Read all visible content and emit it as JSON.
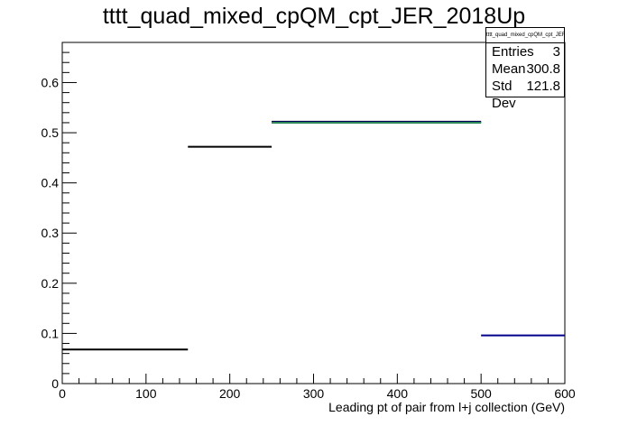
{
  "chart_data": {
    "type": "histogram",
    "title": "tttt_quad_mixed_cpQM_cpt_JER_2018Up",
    "xlabel": "Leading pt of pair from l+j collection (GeV)",
    "ylabel": "",
    "xlim": [
      0,
      600
    ],
    "ylim": [
      0,
      0.68
    ],
    "xticks": [
      0,
      100,
      200,
      300,
      400,
      500,
      600
    ],
    "yticks": [
      0,
      0.1,
      0.2,
      0.3,
      0.4,
      0.5,
      0.6
    ],
    "grid": false,
    "series": [
      {
        "color": "#000000",
        "bins": [
          {
            "x0": 0,
            "x1": 150,
            "y": 0.068
          },
          {
            "x0": 150,
            "x1": 250,
            "y": 0.472
          },
          {
            "x0": 250,
            "x1": 500,
            "y": 0.522
          }
        ]
      },
      {
        "color": "#00008b",
        "bins": [
          {
            "x0": 250,
            "x1": 500,
            "y": 0.521
          },
          {
            "x0": 500,
            "x1": 600,
            "y": 0.096
          }
        ]
      },
      {
        "color": "#2e8b57",
        "bins": [
          {
            "x0": 250,
            "x1": 500,
            "y": 0.52
          }
        ]
      }
    ],
    "stats_box": {
      "title": "tttt_quad_mixed_cpQM_cpt_JER_2018Up",
      "entries_label": "Entries",
      "entries": "3",
      "mean_label": "Mean",
      "mean": "300.8",
      "stddev_label": "Std Dev",
      "stddev": "121.8",
      "placement": "top-right"
    }
  }
}
